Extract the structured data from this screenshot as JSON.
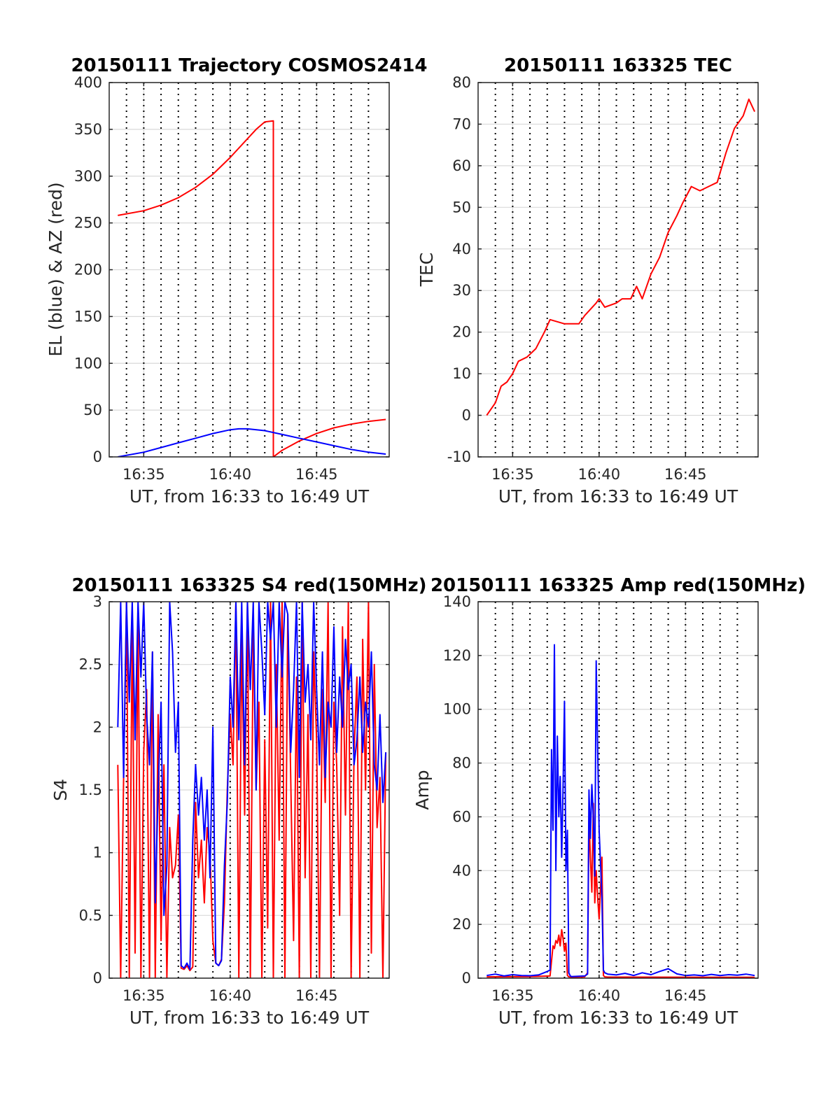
{
  "colors": {
    "red": "#ff0000",
    "blue": "#0000ff",
    "grid": "#d9d9d9",
    "vline": "#000000",
    "axis": "#262626"
  },
  "chart_data": [
    {
      "type": "line",
      "title": "20150111 Trajectory COSMOS2414",
      "xlabel": "UT, from 16:33 to 16:49 UT",
      "ylabel": "EL (blue) & AZ (red)",
      "xlim": [
        16.55,
        16.82
      ],
      "ylim": [
        0,
        400
      ],
      "xticks": [
        16.5833,
        16.6667,
        16.75
      ],
      "xtick_labels": [
        "16:35",
        "16:40",
        "16:45"
      ],
      "yticks": [
        0,
        50,
        100,
        150,
        200,
        250,
        300,
        350,
        400
      ],
      "ytick_labels": [
        "0",
        "50",
        "100",
        "150",
        "200",
        "250",
        "300",
        "350",
        "400"
      ],
      "grid": true,
      "dotted_vlines_min": [
        34,
        35,
        36,
        37,
        38,
        39,
        40,
        41,
        42,
        43,
        44,
        45,
        46,
        47,
        48
      ],
      "series": [
        {
          "color": "red",
          "x": [
            16.5583,
            16.5833,
            16.6,
            16.6167,
            16.6333,
            16.65,
            16.6667,
            16.6833,
            16.6917,
            16.7,
            16.7083,
            16.7083,
            16.7167,
            16.7333,
            16.75,
            16.7667,
            16.7833,
            16.8,
            16.8167
          ],
          "y": [
            258,
            263,
            269,
            277,
            288,
            302,
            320,
            340,
            350,
            358,
            359,
            0,
            7,
            17,
            25,
            31,
            35,
            38,
            40
          ]
        },
        {
          "color": "blue",
          "x": [
            16.5583,
            16.5833,
            16.6,
            16.6167,
            16.6333,
            16.65,
            16.6667,
            16.675,
            16.6833,
            16.7,
            16.7167,
            16.7333,
            16.75,
            16.7667,
            16.7833,
            16.8,
            16.8167
          ],
          "y": [
            0,
            5,
            10,
            15,
            20,
            25,
            29,
            30,
            30,
            28,
            24,
            20,
            16,
            12,
            8,
            5,
            3
          ]
        }
      ]
    },
    {
      "type": "line",
      "title": "20150111 163325 TEC",
      "xlabel": "UT, from 16:33 to 16:49 UT",
      "ylabel": "TEC",
      "xlim": [
        16.55,
        16.82
      ],
      "ylim": [
        -10,
        80
      ],
      "xticks": [
        16.5833,
        16.6667,
        16.75
      ],
      "xtick_labels": [
        "16:35",
        "16:40",
        "16:45"
      ],
      "yticks": [
        -10,
        0,
        10,
        20,
        30,
        40,
        50,
        60,
        70,
        80
      ],
      "ytick_labels": [
        "-10",
        "0",
        "10",
        "20",
        "30",
        "40",
        "50",
        "60",
        "70",
        "80"
      ],
      "grid": true,
      "dotted_vlines_min": [
        34,
        35,
        36,
        37,
        38,
        39,
        40,
        41,
        42,
        43,
        44,
        45,
        46,
        47,
        48
      ],
      "series": [
        {
          "color": "red",
          "x": [
            16.5583,
            16.5667,
            16.5722,
            16.5778,
            16.5833,
            16.5889,
            16.5972,
            16.6056,
            16.6139,
            16.6194,
            16.6333,
            16.6472,
            16.6528,
            16.6639,
            16.6667,
            16.6722,
            16.6833,
            16.6889,
            16.6972,
            16.7028,
            16.7083,
            16.7167,
            16.725,
            16.7333,
            16.7417,
            16.7472,
            16.7556,
            16.7639,
            16.7722,
            16.7806,
            16.7889,
            16.7972,
            16.8056,
            16.8111,
            16.8167
          ],
          "y": [
            0,
            3,
            7,
            8,
            10,
            13,
            14,
            16,
            20,
            23,
            22,
            22,
            24,
            27,
            28,
            26,
            27,
            28,
            28,
            31,
            28,
            34,
            38,
            44,
            48,
            51,
            55,
            54,
            55,
            56,
            63,
            69,
            72,
            76,
            73
          ]
        }
      ]
    },
    {
      "type": "line",
      "title": "20150111 163325 S4 red(150MHz)",
      "xlabel": "UT, from 16:33 to 16:49 UT",
      "ylabel": "S4",
      "xlim": [
        16.55,
        16.82
      ],
      "ylim": [
        0,
        3
      ],
      "xticks": [
        16.5833,
        16.6667,
        16.75
      ],
      "xtick_labels": [
        "16:35",
        "16:40",
        "16:45"
      ],
      "yticks": [
        0,
        0.5,
        1,
        1.5,
        2,
        2.5,
        3
      ],
      "ytick_labels": [
        "0",
        "0.5",
        "1",
        "1.5",
        "2",
        "2.5",
        "3"
      ],
      "grid": true,
      "dotted_vlines_min": [
        34,
        35,
        36,
        37,
        38,
        39,
        40,
        41,
        42,
        43,
        44,
        45,
        46,
        47,
        48
      ],
      "series": [
        {
          "color": "red",
          "x": [
            16.5583,
            16.5611,
            16.5639,
            16.5667,
            16.5694,
            16.5722,
            16.575,
            16.5778,
            16.5806,
            16.5833,
            16.5861,
            16.5889,
            16.5917,
            16.5944,
            16.5972,
            16.6,
            16.6028,
            16.6056,
            16.6083,
            16.6111,
            16.6139,
            16.6167,
            16.6194,
            16.6222,
            16.625,
            16.6278,
            16.6306,
            16.6333,
            16.6361,
            16.6389,
            16.6417,
            16.6444,
            16.6472,
            16.65,
            16.6528,
            16.6556,
            16.6583,
            16.6611,
            16.6639,
            16.6667,
            16.6694,
            16.6722,
            16.675,
            16.6778,
            16.6806,
            16.6833,
            16.6861,
            16.6889,
            16.6917,
            16.6944,
            16.6972,
            16.7,
            16.7028,
            16.7056,
            16.7083,
            16.7111,
            16.7139,
            16.7167,
            16.7194,
            16.7222,
            16.725,
            16.7278,
            16.7306,
            16.7333,
            16.7361,
            16.7389,
            16.7417,
            16.7444,
            16.7472,
            16.75,
            16.7528,
            16.7556,
            16.7583,
            16.7611,
            16.7639,
            16.7667,
            16.7694,
            16.7722,
            16.775,
            16.7778,
            16.7806,
            16.7833,
            16.7861,
            16.7889,
            16.7917,
            16.7944,
            16.7972,
            16.8,
            16.8028,
            16.8056,
            16.8083,
            16.8111,
            16.8139,
            16.8167
          ],
          "y": [
            1.7,
            0,
            1.6,
            3,
            0,
            2.8,
            0.2,
            2.9,
            0,
            1.8,
            2.3,
            0,
            2.6,
            0,
            2.1,
            0.3,
            1.7,
            0,
            1.2,
            0.8,
            0.9,
            1.3,
            0.08,
            0.07,
            0.1,
            0.06,
            0.09,
            1.4,
            0.8,
            1.1,
            0.6,
            1.2,
            1.0,
            0.3,
            0.12,
            0.1,
            0.15,
            0.6,
            1.5,
            2.1,
            1.7,
            3,
            0,
            2.7,
            1.3,
            3,
            0,
            2.8,
            1.5,
            2.2,
            0,
            1.9,
            0.4,
            3,
            0,
            2.5,
            1.1,
            3,
            0,
            2.9,
            1.6,
            0.3,
            2.4,
            0,
            3,
            0.8,
            2.1,
            0,
            2.6,
            1.9,
            0,
            2.3,
            1.4,
            3,
            0,
            2.2,
            1.7,
            0.5,
            2.8,
            1.3,
            3,
            0,
            1.8,
            2.4,
            0,
            2.7,
            1.5,
            3,
            0.2,
            2.5,
            1.2,
            1.6,
            0,
            1.8
          ]
        },
        {
          "color": "blue",
          "x": [
            16.5583,
            16.5611,
            16.5639,
            16.5667,
            16.5694,
            16.5722,
            16.575,
            16.5778,
            16.5806,
            16.5833,
            16.5861,
            16.5889,
            16.5917,
            16.5944,
            16.5972,
            16.6,
            16.6028,
            16.6056,
            16.6083,
            16.6111,
            16.6139,
            16.6167,
            16.6194,
            16.6222,
            16.625,
            16.6278,
            16.6306,
            16.6333,
            16.6361,
            16.6389,
            16.6417,
            16.6444,
            16.6472,
            16.65,
            16.6528,
            16.6556,
            16.6583,
            16.6611,
            16.6639,
            16.6667,
            16.6694,
            16.6722,
            16.675,
            16.6778,
            16.6806,
            16.6833,
            16.6861,
            16.6889,
            16.6917,
            16.6944,
            16.6972,
            16.7,
            16.7028,
            16.7056,
            16.7083,
            16.7111,
            16.7139,
            16.7167,
            16.7194,
            16.7222,
            16.725,
            16.7278,
            16.7306,
            16.7333,
            16.7361,
            16.7389,
            16.7417,
            16.7444,
            16.7472,
            16.75,
            16.7528,
            16.7556,
            16.7583,
            16.7611,
            16.7639,
            16.7667,
            16.7694,
            16.7722,
            16.775,
            16.7778,
            16.7806,
            16.7833,
            16.7861,
            16.7889,
            16.7917,
            16.7944,
            16.7972,
            16.8,
            16.8028,
            16.8056,
            16.8083,
            16.8111,
            16.8139,
            16.8167
          ],
          "y": [
            2.0,
            3,
            1.6,
            3,
            2.2,
            3,
            1.9,
            3,
            2.4,
            3,
            2.1,
            1.7,
            2.6,
            0.6,
            1.5,
            2.2,
            0.5,
            0.9,
            3,
            2.6,
            1.8,
            2.2,
            0.1,
            0.08,
            0.12,
            0.07,
            1.1,
            1.7,
            1.3,
            1.6,
            1.1,
            1.5,
            0.8,
            2.0,
            0.12,
            0.1,
            0.14,
            0.9,
            1.4,
            2.4,
            2.0,
            3,
            1.9,
            3,
            1.7,
            3,
            2.3,
            3,
            1.5,
            3,
            2.6,
            2.1,
            3,
            2.7,
            3,
            2.0,
            3,
            2.4,
            3,
            2.9,
            1.8,
            2.3,
            3,
            1.6,
            3,
            2.2,
            2.5,
            1.9,
            3,
            2.3,
            1.7,
            2.6,
            1.6,
            2.2,
            2.0,
            2.8,
            1.8,
            2.4,
            2.0,
            2.7,
            2.3,
            2.5,
            1.7,
            1.9,
            2.4,
            1.8,
            2.2,
            2.0,
            2.6,
            1.7,
            1.5,
            2.1,
            1.4,
            1.8
          ]
        }
      ]
    },
    {
      "type": "line",
      "title": "20150111 163325 Amp red(150MHz)",
      "xlabel": "UT, from 16:33 to 16:49 UT",
      "ylabel": "Amp",
      "xlim": [
        16.55,
        16.82
      ],
      "ylim": [
        0,
        140
      ],
      "xticks": [
        16.5833,
        16.6667,
        16.75
      ],
      "xtick_labels": [
        "16:35",
        "16:40",
        "16:45"
      ],
      "yticks": [
        0,
        20,
        40,
        60,
        80,
        100,
        120,
        140
      ],
      "ytick_labels": [
        "0",
        "20",
        "40",
        "60",
        "80",
        "100",
        "120",
        "140"
      ],
      "grid": true,
      "dotted_vlines_min": [
        34,
        35,
        36,
        37,
        38,
        39,
        40,
        41,
        42,
        43,
        44,
        45,
        46,
        47,
        48
      ],
      "series": [
        {
          "color": "red",
          "x": [
            16.5583,
            16.6,
            16.6194,
            16.6222,
            16.6236,
            16.625,
            16.6264,
            16.6278,
            16.6292,
            16.6306,
            16.6319,
            16.6333,
            16.6347,
            16.6361,
            16.6375,
            16.64,
            16.6528,
            16.6556,
            16.6569,
            16.6583,
            16.6597,
            16.6611,
            16.6625,
            16.6639,
            16.6653,
            16.6667,
            16.6681,
            16.6694,
            16.6708,
            16.6722,
            16.675,
            16.8167
          ],
          "y": [
            0.5,
            0.6,
            0.8,
            12,
            11,
            14,
            13,
            16,
            12,
            18,
            15,
            10,
            13,
            1,
            0.5,
            0.3,
            0.5,
            2,
            60,
            45,
            32,
            65,
            28,
            40,
            30,
            22,
            34,
            45,
            1,
            0.5,
            0.4,
            0.3
          ]
        },
        {
          "color": "blue",
          "x": [
            16.5583,
            16.5667,
            16.575,
            16.5833,
            16.5917,
            16.6,
            16.6083,
            16.6167,
            16.6194,
            16.6208,
            16.6222,
            16.6236,
            16.625,
            16.6264,
            16.6278,
            16.6292,
            16.6306,
            16.6319,
            16.6333,
            16.6347,
            16.6361,
            16.6375,
            16.6389,
            16.64,
            16.6472,
            16.6528,
            16.6556,
            16.6569,
            16.6583,
            16.6597,
            16.6611,
            16.6625,
            16.6639,
            16.6653,
            16.6667,
            16.6681,
            16.6694,
            16.6708,
            16.6722,
            16.675,
            16.6833,
            16.6917,
            16.7,
            16.7083,
            16.7167,
            16.725,
            16.7333,
            16.7417,
            16.75,
            16.7583,
            16.7667,
            16.775,
            16.7833,
            16.7917,
            16.8,
            16.8083,
            16.8167
          ],
          "y": [
            1,
            1.5,
            0.8,
            1.3,
            1,
            0.9,
            1.2,
            2.5,
            3,
            85,
            55,
            124,
            40,
            90,
            60,
            75,
            45,
            70,
            103,
            40,
            55,
            2,
            0.8,
            0.6,
            0.7,
            0.8,
            1.5,
            70,
            52,
            72,
            60,
            38,
            118,
            85,
            55,
            42,
            30,
            3,
            2,
            1.5,
            1.2,
            1.8,
            1,
            2,
            1.3,
            2.5,
            3.5,
            1.6,
            1,
            1.2,
            0.9,
            1.4,
            1,
            1.3,
            1.1,
            1.5,
            1
          ]
        }
      ]
    }
  ]
}
